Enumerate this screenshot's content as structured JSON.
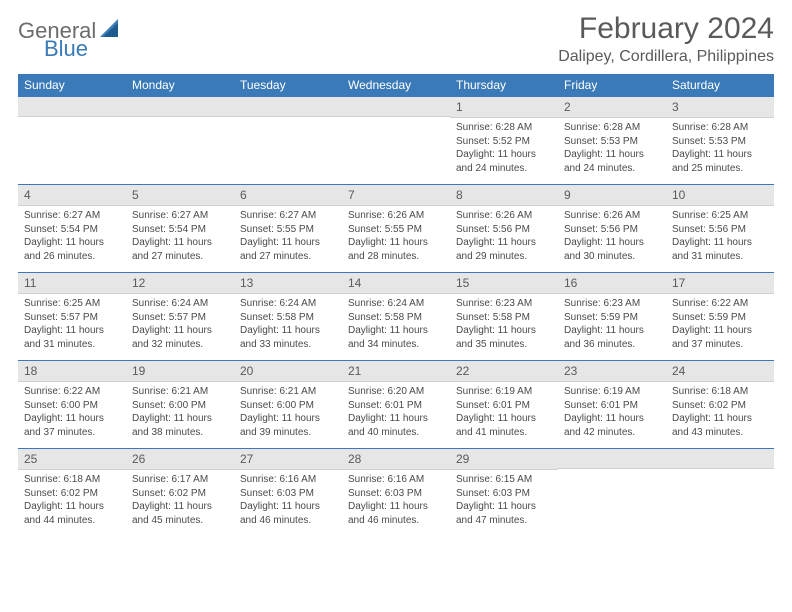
{
  "logo": {
    "text_general": "General",
    "text_blue": "Blue"
  },
  "title": "February 2024",
  "location": "Dalipey, Cordillera, Philippines",
  "colors": {
    "header_bg": "#3a7ab8",
    "header_text": "#ffffff",
    "daynum_bg": "#e6e6e6",
    "border": "#3a7ab8",
    "text": "#4a4a4a",
    "title_text": "#5a5a5a"
  },
  "typography": {
    "title_fontsize": 30,
    "location_fontsize": 16,
    "dayheader_fontsize": 12,
    "daynum_fontsize": 12,
    "detail_fontsize": 10
  },
  "day_headers": [
    "Sunday",
    "Monday",
    "Tuesday",
    "Wednesday",
    "Thursday",
    "Friday",
    "Saturday"
  ],
  "weeks": [
    [
      null,
      null,
      null,
      null,
      {
        "num": "1",
        "sunrise": "Sunrise: 6:28 AM",
        "sunset": "Sunset: 5:52 PM",
        "daylight1": "Daylight: 11 hours",
        "daylight2": "and 24 minutes."
      },
      {
        "num": "2",
        "sunrise": "Sunrise: 6:28 AM",
        "sunset": "Sunset: 5:53 PM",
        "daylight1": "Daylight: 11 hours",
        "daylight2": "and 24 minutes."
      },
      {
        "num": "3",
        "sunrise": "Sunrise: 6:28 AM",
        "sunset": "Sunset: 5:53 PM",
        "daylight1": "Daylight: 11 hours",
        "daylight2": "and 25 minutes."
      }
    ],
    [
      {
        "num": "4",
        "sunrise": "Sunrise: 6:27 AM",
        "sunset": "Sunset: 5:54 PM",
        "daylight1": "Daylight: 11 hours",
        "daylight2": "and 26 minutes."
      },
      {
        "num": "5",
        "sunrise": "Sunrise: 6:27 AM",
        "sunset": "Sunset: 5:54 PM",
        "daylight1": "Daylight: 11 hours",
        "daylight2": "and 27 minutes."
      },
      {
        "num": "6",
        "sunrise": "Sunrise: 6:27 AM",
        "sunset": "Sunset: 5:55 PM",
        "daylight1": "Daylight: 11 hours",
        "daylight2": "and 27 minutes."
      },
      {
        "num": "7",
        "sunrise": "Sunrise: 6:26 AM",
        "sunset": "Sunset: 5:55 PM",
        "daylight1": "Daylight: 11 hours",
        "daylight2": "and 28 minutes."
      },
      {
        "num": "8",
        "sunrise": "Sunrise: 6:26 AM",
        "sunset": "Sunset: 5:56 PM",
        "daylight1": "Daylight: 11 hours",
        "daylight2": "and 29 minutes."
      },
      {
        "num": "9",
        "sunrise": "Sunrise: 6:26 AM",
        "sunset": "Sunset: 5:56 PM",
        "daylight1": "Daylight: 11 hours",
        "daylight2": "and 30 minutes."
      },
      {
        "num": "10",
        "sunrise": "Sunrise: 6:25 AM",
        "sunset": "Sunset: 5:56 PM",
        "daylight1": "Daylight: 11 hours",
        "daylight2": "and 31 minutes."
      }
    ],
    [
      {
        "num": "11",
        "sunrise": "Sunrise: 6:25 AM",
        "sunset": "Sunset: 5:57 PM",
        "daylight1": "Daylight: 11 hours",
        "daylight2": "and 31 minutes."
      },
      {
        "num": "12",
        "sunrise": "Sunrise: 6:24 AM",
        "sunset": "Sunset: 5:57 PM",
        "daylight1": "Daylight: 11 hours",
        "daylight2": "and 32 minutes."
      },
      {
        "num": "13",
        "sunrise": "Sunrise: 6:24 AM",
        "sunset": "Sunset: 5:58 PM",
        "daylight1": "Daylight: 11 hours",
        "daylight2": "and 33 minutes."
      },
      {
        "num": "14",
        "sunrise": "Sunrise: 6:24 AM",
        "sunset": "Sunset: 5:58 PM",
        "daylight1": "Daylight: 11 hours",
        "daylight2": "and 34 minutes."
      },
      {
        "num": "15",
        "sunrise": "Sunrise: 6:23 AM",
        "sunset": "Sunset: 5:58 PM",
        "daylight1": "Daylight: 11 hours",
        "daylight2": "and 35 minutes."
      },
      {
        "num": "16",
        "sunrise": "Sunrise: 6:23 AM",
        "sunset": "Sunset: 5:59 PM",
        "daylight1": "Daylight: 11 hours",
        "daylight2": "and 36 minutes."
      },
      {
        "num": "17",
        "sunrise": "Sunrise: 6:22 AM",
        "sunset": "Sunset: 5:59 PM",
        "daylight1": "Daylight: 11 hours",
        "daylight2": "and 37 minutes."
      }
    ],
    [
      {
        "num": "18",
        "sunrise": "Sunrise: 6:22 AM",
        "sunset": "Sunset: 6:00 PM",
        "daylight1": "Daylight: 11 hours",
        "daylight2": "and 37 minutes."
      },
      {
        "num": "19",
        "sunrise": "Sunrise: 6:21 AM",
        "sunset": "Sunset: 6:00 PM",
        "daylight1": "Daylight: 11 hours",
        "daylight2": "and 38 minutes."
      },
      {
        "num": "20",
        "sunrise": "Sunrise: 6:21 AM",
        "sunset": "Sunset: 6:00 PM",
        "daylight1": "Daylight: 11 hours",
        "daylight2": "and 39 minutes."
      },
      {
        "num": "21",
        "sunrise": "Sunrise: 6:20 AM",
        "sunset": "Sunset: 6:01 PM",
        "daylight1": "Daylight: 11 hours",
        "daylight2": "and 40 minutes."
      },
      {
        "num": "22",
        "sunrise": "Sunrise: 6:19 AM",
        "sunset": "Sunset: 6:01 PM",
        "daylight1": "Daylight: 11 hours",
        "daylight2": "and 41 minutes."
      },
      {
        "num": "23",
        "sunrise": "Sunrise: 6:19 AM",
        "sunset": "Sunset: 6:01 PM",
        "daylight1": "Daylight: 11 hours",
        "daylight2": "and 42 minutes."
      },
      {
        "num": "24",
        "sunrise": "Sunrise: 6:18 AM",
        "sunset": "Sunset: 6:02 PM",
        "daylight1": "Daylight: 11 hours",
        "daylight2": "and 43 minutes."
      }
    ],
    [
      {
        "num": "25",
        "sunrise": "Sunrise: 6:18 AM",
        "sunset": "Sunset: 6:02 PM",
        "daylight1": "Daylight: 11 hours",
        "daylight2": "and 44 minutes."
      },
      {
        "num": "26",
        "sunrise": "Sunrise: 6:17 AM",
        "sunset": "Sunset: 6:02 PM",
        "daylight1": "Daylight: 11 hours",
        "daylight2": "and 45 minutes."
      },
      {
        "num": "27",
        "sunrise": "Sunrise: 6:16 AM",
        "sunset": "Sunset: 6:03 PM",
        "daylight1": "Daylight: 11 hours",
        "daylight2": "and 46 minutes."
      },
      {
        "num": "28",
        "sunrise": "Sunrise: 6:16 AM",
        "sunset": "Sunset: 6:03 PM",
        "daylight1": "Daylight: 11 hours",
        "daylight2": "and 46 minutes."
      },
      {
        "num": "29",
        "sunrise": "Sunrise: 6:15 AM",
        "sunset": "Sunset: 6:03 PM",
        "daylight1": "Daylight: 11 hours",
        "daylight2": "and 47 minutes."
      },
      null,
      null
    ]
  ]
}
